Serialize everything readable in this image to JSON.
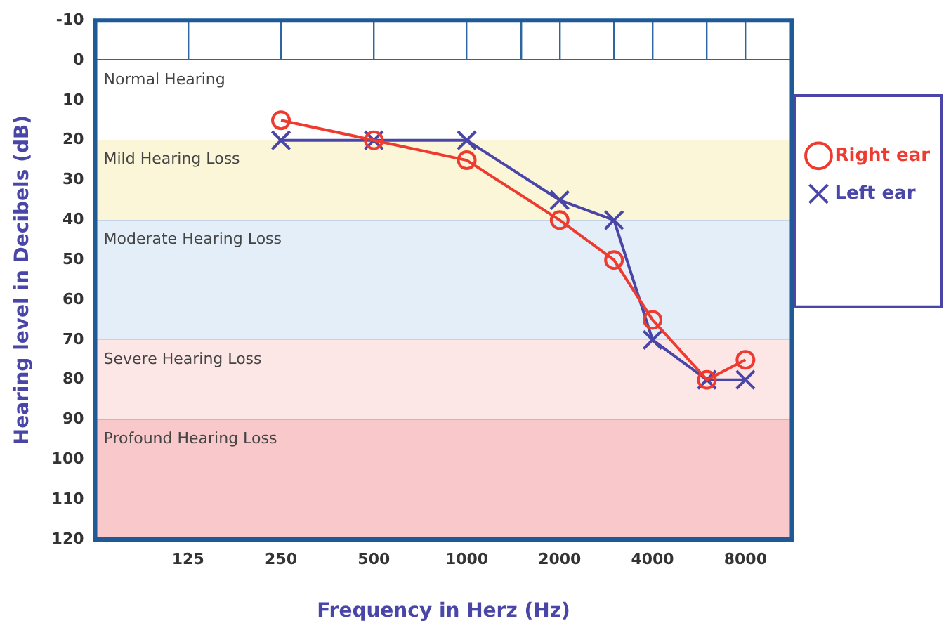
{
  "chart_data": {
    "type": "line",
    "xlabel": "Frequency in Herz (Hz)",
    "ylabel": "Hearing level in Decibels (dB)",
    "x": [
      250,
      500,
      1000,
      2000,
      3000,
      4000,
      6000,
      8000
    ],
    "series": [
      {
        "name": "Right ear",
        "color": "#ee3b30",
        "marker": "circle",
        "values": [
          15,
          20,
          25,
          40,
          50,
          65,
          80,
          75
        ]
      },
      {
        "name": "Left ear",
        "color": "#4a46a8",
        "marker": "cross",
        "values": [
          20,
          20,
          20,
          35,
          40,
          70,
          80,
          80
        ]
      }
    ],
    "log": "x",
    "xlim": [
      62.5,
      11314
    ],
    "xticks": [
      125,
      250,
      500,
      1000,
      {
        "value": 1500,
        "label": null
      },
      2000,
      {
        "value": 3000,
        "label": null
      },
      4000,
      {
        "value": 6000,
        "label": null
      },
      8000
    ],
    "ylim": [
      120,
      -10
    ],
    "yticks": [
      -10,
      0,
      10,
      20,
      30,
      40,
      50,
      60,
      70,
      80,
      90,
      100,
      110,
      120
    ],
    "bands": [
      {
        "axis": "y",
        "from": 0,
        "to": 20,
        "label": "Normal Hearing",
        "color": "#ffffff"
      },
      {
        "axis": "y",
        "from": 20,
        "to": 40,
        "label": "Mild Hearing Loss",
        "color": "#fbf6d8"
      },
      {
        "axis": "y",
        "from": 40,
        "to": 70,
        "label": "Moderate Hearing Loss",
        "color": "#e3eef9"
      },
      {
        "axis": "y",
        "from": 70,
        "to": 90,
        "label": "Severe Hearing Loss",
        "color": "#fde6e6"
      },
      {
        "axis": "y",
        "from": 90,
        "to": 120,
        "label": "Profound Hearing Loss",
        "color": "#f8c8cb"
      }
    ],
    "grid": true,
    "legend": "right",
    "line_style": "solid"
  }
}
